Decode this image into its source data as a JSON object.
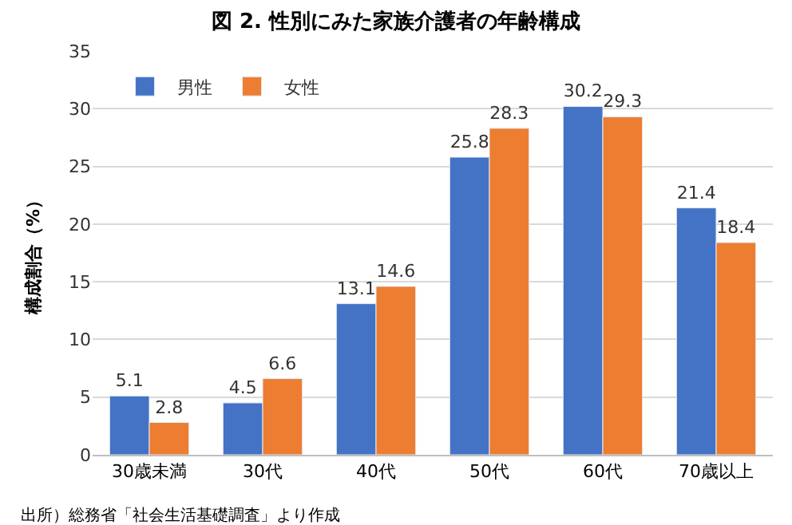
{
  "chart_data": {
    "type": "bar",
    "title": "図 2. 性別にみた家族介護者の年齢構成",
    "categories": [
      "30歳未満",
      "30代",
      "40代",
      "50代",
      "60代",
      "70歳以上"
    ],
    "series": [
      {
        "name": "男性",
        "color": "#4472c4",
        "values": [
          5.1,
          4.5,
          13.1,
          25.8,
          30.2,
          21.4
        ]
      },
      {
        "name": "女性",
        "color": "#ed7d31",
        "values": [
          2.8,
          6.6,
          14.6,
          28.3,
          29.3,
          18.4
        ]
      }
    ],
    "ylabel": "構成割合（%）",
    "ylim": [
      0,
      35
    ],
    "yticks": [
      0,
      5,
      10,
      15,
      20,
      25,
      30,
      35
    ],
    "grid": "y",
    "legend": "top left",
    "data_labels": true,
    "annotations": [
      "出所）総務省「社会生活基礎調査」より作成"
    ]
  }
}
